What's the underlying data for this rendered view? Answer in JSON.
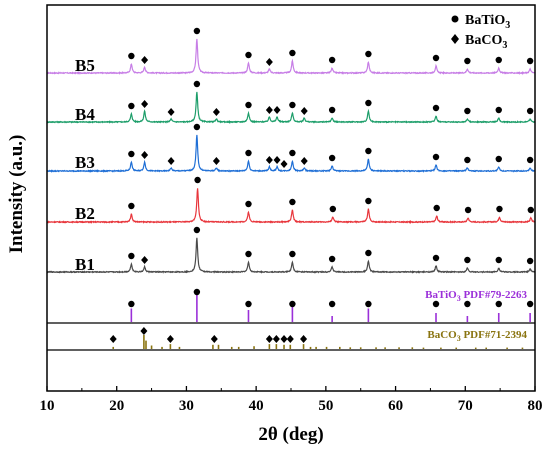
{
  "chart_data": {
    "type": "line",
    "xlabel": "2θ (deg)",
    "ylabel": "Intensity (a.u.)",
    "xlim": [
      10,
      80
    ],
    "x_ticks": [
      10,
      20,
      30,
      40,
      50,
      60,
      70,
      80
    ],
    "legend": {
      "position": "top-right",
      "entries": [
        {
          "marker": "circle",
          "text": "BaTiO3",
          "base": "BaTiO",
          "sub": "3"
        },
        {
          "marker": "diamond",
          "text": "BaCO3",
          "base": "BaCO",
          "sub": "3"
        }
      ]
    },
    "series": [
      {
        "name": "B5",
        "color": "#c77ee6",
        "peaks": [
          [
            22.1,
            9
          ],
          [
            24.0,
            6
          ],
          [
            31.5,
            34
          ],
          [
            38.9,
            10
          ],
          [
            41.9,
            4
          ],
          [
            45.2,
            12
          ],
          [
            50.9,
            5
          ],
          [
            56.1,
            11
          ],
          [
            65.8,
            7
          ],
          [
            70.3,
            4
          ],
          [
            74.8,
            5
          ],
          [
            79.3,
            4
          ]
        ],
        "bto_markers": [
          22.1,
          31.5,
          38.9,
          45.2,
          50.9,
          56.1,
          65.8,
          70.3,
          74.8,
          79.3
        ],
        "bco_markers": [
          24.0,
          41.9
        ]
      },
      {
        "name": "B4",
        "color": "#1d9e6a",
        "peaks": [
          [
            22.1,
            8
          ],
          [
            24.0,
            11
          ],
          [
            27.8,
            3
          ],
          [
            31.5,
            30
          ],
          [
            34.3,
            3
          ],
          [
            38.9,
            9
          ],
          [
            41.9,
            5
          ],
          [
            43.0,
            5
          ],
          [
            45.2,
            9
          ],
          [
            46.9,
            4
          ],
          [
            50.9,
            4
          ],
          [
            56.1,
            11
          ],
          [
            65.8,
            6
          ],
          [
            70.3,
            3
          ],
          [
            74.8,
            4
          ],
          [
            79.3,
            3
          ]
        ],
        "bto_markers": [
          22.1,
          31.5,
          38.9,
          45.2,
          50.9,
          56.1,
          65.8,
          70.3,
          74.8,
          79.3
        ],
        "bco_markers": [
          24.0,
          27.8,
          34.3,
          41.9,
          43.0,
          46.9
        ]
      },
      {
        "name": "B3",
        "color": "#1f6fd6",
        "peaks": [
          [
            22.1,
            9
          ],
          [
            24.0,
            9
          ],
          [
            27.8,
            3
          ],
          [
            31.5,
            36
          ],
          [
            34.3,
            3
          ],
          [
            38.9,
            10
          ],
          [
            41.9,
            4
          ],
          [
            43.0,
            4
          ],
          [
            45.2,
            10
          ],
          [
            46.9,
            3
          ],
          [
            50.9,
            5
          ],
          [
            56.1,
            12
          ],
          [
            65.8,
            6
          ],
          [
            70.3,
            3
          ],
          [
            74.8,
            4
          ],
          [
            79.3,
            3
          ]
        ],
        "bto_markers": [
          22.1,
          31.5,
          38.9,
          45.2,
          50.9,
          56.1,
          65.8,
          70.3,
          74.8,
          79.3
        ],
        "bco_markers": [
          24.0,
          27.8,
          34.3,
          41.9,
          43.0,
          44.0,
          46.9
        ]
      },
      {
        "name": "B2",
        "color": "#e8363c",
        "peaks": [
          [
            22.1,
            8
          ],
          [
            31.6,
            34
          ],
          [
            38.9,
            10
          ],
          [
            45.2,
            12
          ],
          [
            51.0,
            5
          ],
          [
            56.1,
            13
          ],
          [
            65.9,
            6
          ],
          [
            70.4,
            4
          ],
          [
            74.9,
            5
          ],
          [
            79.4,
            4
          ]
        ],
        "bto_markers": [
          22.1,
          31.6,
          38.9,
          45.2,
          51.0,
          56.1,
          65.9,
          70.4,
          74.9,
          79.4
        ],
        "bco_markers": []
      },
      {
        "name": "B1",
        "color": "#4a4a4a",
        "peaks": [
          [
            22.1,
            8
          ],
          [
            24.0,
            5
          ],
          [
            31.5,
            34
          ],
          [
            38.9,
            10
          ],
          [
            45.2,
            10
          ],
          [
            50.9,
            5
          ],
          [
            56.1,
            11
          ],
          [
            65.8,
            6
          ],
          [
            70.3,
            4
          ],
          [
            74.8,
            4
          ],
          [
            79.3,
            3
          ]
        ],
        "bto_markers": [
          22.1,
          31.5,
          38.9,
          45.2,
          50.9,
          56.1,
          65.8,
          70.3,
          74.8,
          79.3
        ],
        "bco_markers": [
          24.0
        ]
      }
    ],
    "references": [
      {
        "label": "BaTiO3 PDF#79-2263",
        "label_base": "BaTiO",
        "label_sub": "3",
        "label_rest": " PDF#79-2263",
        "color": "#9b30d9",
        "lines": [
          [
            22.1,
            0.45
          ],
          [
            31.5,
            1.0
          ],
          [
            38.9,
            0.4
          ],
          [
            45.2,
            0.5
          ],
          [
            50.9,
            0.2
          ],
          [
            56.1,
            0.45
          ],
          [
            65.8,
            0.3
          ],
          [
            70.3,
            0.2
          ],
          [
            74.8,
            0.3
          ],
          [
            79.3,
            0.3
          ]
        ],
        "markers": [
          22.1,
          31.5,
          38.9,
          45.2,
          50.9,
          56.1,
          65.8,
          70.3,
          74.8,
          79.3
        ]
      },
      {
        "label": "BaCO3 PDF#71-2394",
        "label_base": "BaCO",
        "label_sub": "3",
        "label_rest": " PDF#71-2394",
        "color": "#8a7410",
        "lines": [
          [
            19.5,
            0.15
          ],
          [
            23.9,
            1.0
          ],
          [
            24.2,
            0.6
          ],
          [
            25.0,
            0.25
          ],
          [
            26.5,
            0.15
          ],
          [
            27.7,
            0.35
          ],
          [
            29.0,
            0.15
          ],
          [
            33.8,
            0.3
          ],
          [
            34.6,
            0.3
          ],
          [
            36.5,
            0.15
          ],
          [
            37.5,
            0.15
          ],
          [
            39.7,
            0.2
          ],
          [
            41.9,
            0.35
          ],
          [
            42.9,
            0.35
          ],
          [
            44.0,
            0.3
          ],
          [
            44.9,
            0.3
          ],
          [
            46.8,
            0.35
          ],
          [
            47.8,
            0.15
          ],
          [
            48.6,
            0.15
          ],
          [
            50.1,
            0.15
          ],
          [
            52.0,
            0.15
          ],
          [
            53.5,
            0.12
          ],
          [
            55.0,
            0.12
          ],
          [
            57.2,
            0.12
          ],
          [
            58.5,
            0.12
          ],
          [
            60.5,
            0.12
          ],
          [
            62.4,
            0.12
          ],
          [
            64.0,
            0.1
          ],
          [
            66.5,
            0.1
          ],
          [
            68.7,
            0.1
          ],
          [
            71.5,
            0.1
          ],
          [
            73.0,
            0.1
          ],
          [
            76.0,
            0.1
          ],
          [
            78.2,
            0.1
          ]
        ],
        "markers": [
          19.5,
          23.9,
          27.7,
          34.0,
          41.9,
          42.9,
          44.0,
          44.9,
          46.8
        ]
      }
    ]
  }
}
